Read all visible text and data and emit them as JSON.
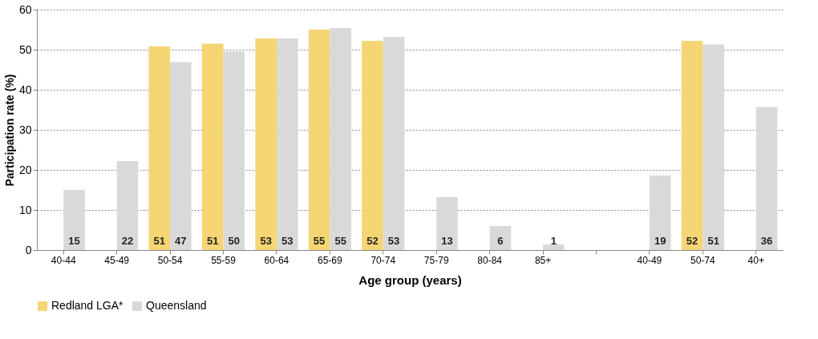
{
  "chart_data": {
    "type": "bar",
    "xlabel": "Age group (years)",
    "ylabel": "Participation rate (%)",
    "categories": [
      "40-44",
      "45-49",
      "50-54",
      "55-59",
      "60-64",
      "65-69",
      "70-74",
      "75-79",
      "80-84",
      "85+",
      null,
      "40-49",
      "50-74",
      "40+"
    ],
    "series": [
      {
        "name": "Redland LGA*",
        "color": "#f5d574",
        "values": [
          null,
          null,
          50.8,
          51.5,
          52.8,
          55.0,
          52.2,
          null,
          null,
          null,
          null,
          null,
          52.2,
          null
        ],
        "value_labels": [
          null,
          null,
          "51",
          "51",
          "53",
          "55",
          "52",
          null,
          null,
          null,
          null,
          null,
          "52",
          null
        ]
      },
      {
        "name": "Queensland",
        "color": "#d9d9d9",
        "values": [
          15.0,
          22.2,
          46.9,
          49.6,
          52.8,
          55.4,
          53.2,
          13.2,
          6.0,
          1.4,
          null,
          18.6,
          51.3,
          35.7
        ],
        "value_labels": [
          "15",
          "22",
          "47",
          "50",
          "53",
          "55",
          "53",
          "13",
          "6",
          "1",
          null,
          "19",
          "51",
          "36"
        ]
      }
    ],
    "ylim": [
      0,
      60
    ],
    "yticks": [
      0,
      10,
      20,
      30,
      40,
      50,
      60
    ],
    "grid": "y",
    "legend": "bottom"
  }
}
